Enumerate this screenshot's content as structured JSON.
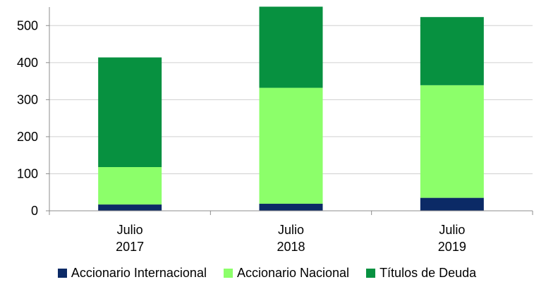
{
  "chart_data": {
    "type": "bar",
    "stacked": true,
    "categories": [
      [
        "Julio",
        "2017"
      ],
      [
        "Julio",
        "2018"
      ],
      [
        "Julio",
        "2019"
      ]
    ],
    "series": [
      {
        "name": "Accionario Internacional",
        "color": "#0b2a66",
        "values": [
          17,
          19,
          35
        ]
      },
      {
        "name": "Accionario Nacional",
        "color": "#8cff6a",
        "values": [
          101,
          313,
          304
        ]
      },
      {
        "name": "Títulos de Deuda",
        "color": "#079140",
        "values": [
          296,
          219,
          184
        ]
      }
    ],
    "yticks": [
      0,
      100,
      200,
      300,
      400,
      500
    ],
    "ylim": [
      0,
      550
    ],
    "grid": true,
    "legend": "bottom",
    "title": "",
    "xlabel": "",
    "ylabel": ""
  }
}
